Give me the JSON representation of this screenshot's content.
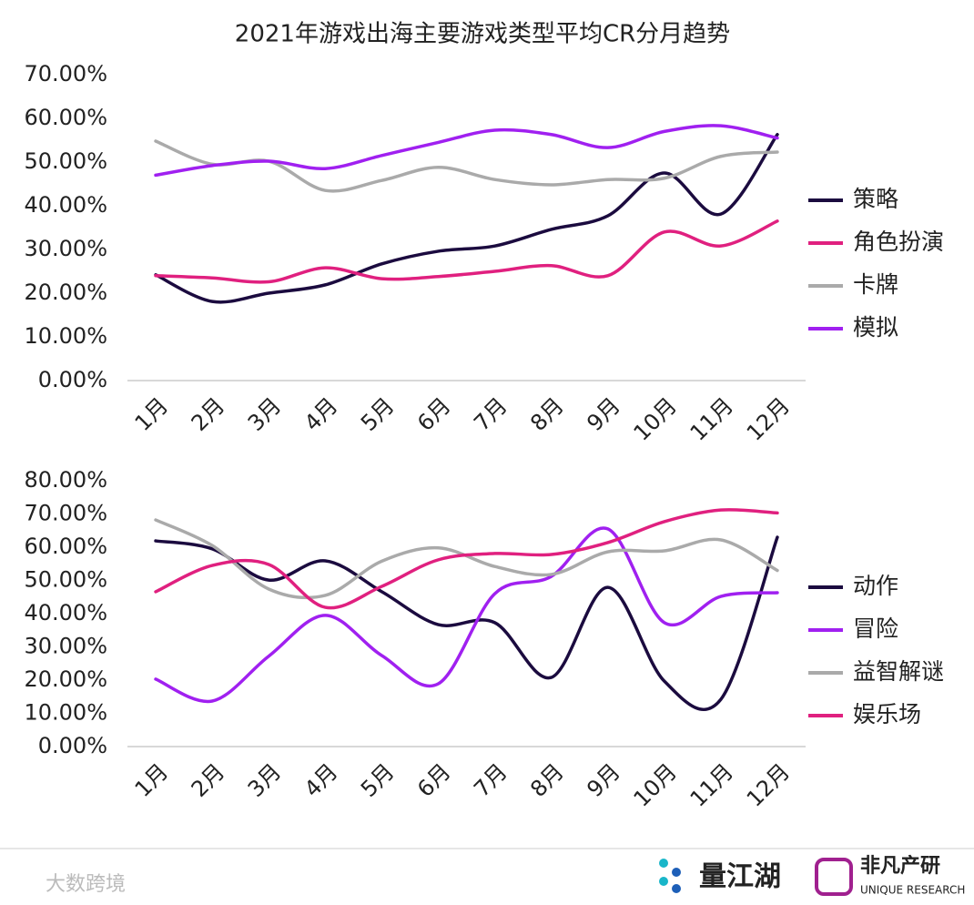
{
  "title": "2021年游戏出海主要游戏类型平均CR分月趋势",
  "footer": {
    "watermark": "大数跨境",
    "logo1": "量江湖",
    "logo2": "非凡产研",
    "logo2_sub": "UNIQUE RESEARCH"
  },
  "chart_data": [
    {
      "type": "line",
      "categories": [
        "1月",
        "2月",
        "3月",
        "4月",
        "5月",
        "6月",
        "7月",
        "8月",
        "9月",
        "10月",
        "11月",
        "12月"
      ],
      "series": [
        {
          "name": "策略",
          "color": "#1b0b3f",
          "values": [
            24.2,
            18.1,
            20,
            21.9,
            26.7,
            29.6,
            30.8,
            34.6,
            37.7,
            47.5,
            38.1,
            56.3
          ]
        },
        {
          "name": "角色扮演",
          "color": "#e0207f",
          "values": [
            24,
            23.5,
            22.6,
            25.8,
            23.3,
            23.8,
            25,
            26.3,
            24,
            34,
            30.8,
            36.5
          ]
        },
        {
          "name": "卡牌",
          "color": "#aaaaaa",
          "values": [
            54.8,
            49.5,
            50.2,
            43.5,
            45.8,
            48.8,
            46,
            44.8,
            46,
            46.3,
            51.3,
            52.3
          ]
        },
        {
          "name": "模拟",
          "color": "#a020f0",
          "values": [
            47,
            49.2,
            50.2,
            48.5,
            51.5,
            54.5,
            57.3,
            56.3,
            53.3,
            57,
            58.3,
            55.5
          ]
        }
      ],
      "ylim": [
        0,
        70
      ],
      "yticks": [
        {
          "value": 0,
          "label": "0.00%"
        },
        {
          "value": 10,
          "label": "10.00%"
        },
        {
          "value": 20,
          "label": "20.00%"
        },
        {
          "value": 30,
          "label": "30.00%"
        },
        {
          "value": 40,
          "label": "40.00%"
        },
        {
          "value": 50,
          "label": "50.00%"
        },
        {
          "value": 60,
          "label": "60.00%"
        },
        {
          "value": 70,
          "label": "70.00%"
        }
      ],
      "grid": false,
      "legend": "right"
    },
    {
      "type": "line",
      "categories": [
        "1月",
        "2月",
        "3月",
        "4月",
        "5月",
        "6月",
        "7月",
        "8月",
        "9月",
        "10月",
        "11月",
        "12月"
      ],
      "series": [
        {
          "name": "动作",
          "color": "#1b0b3f",
          "values": [
            61.9,
            59.5,
            50.1,
            55.9,
            46.6,
            36.7,
            37.3,
            20.8,
            47.9,
            19.7,
            14.2,
            63
          ]
        },
        {
          "name": "冒险",
          "color": "#a020f0",
          "values": [
            20.3,
            13.7,
            27.2,
            39.5,
            27.4,
            18.9,
            46,
            51.2,
            65.5,
            37.3,
            45.2,
            46.3
          ]
        },
        {
          "name": "益智解谜",
          "color": "#aaaaaa",
          "values": [
            68.2,
            60.5,
            47.4,
            45.5,
            55.8,
            59.8,
            54.2,
            51.8,
            58.6,
            58.9,
            62.2,
            53
          ]
        },
        {
          "name": "娱乐场",
          "color": "#e0207f",
          "values": [
            46.6,
            54.5,
            54.8,
            41.9,
            48.2,
            56.2,
            58.1,
            57.8,
            61.4,
            67.7,
            71.2,
            70.3
          ]
        }
      ],
      "ylim": [
        0,
        80
      ],
      "yticks": [
        {
          "value": 0,
          "label": "0.00%"
        },
        {
          "value": 10,
          "label": "10.00%"
        },
        {
          "value": 20,
          "label": "20.00%"
        },
        {
          "value": 30,
          "label": "30.00%"
        },
        {
          "value": 40,
          "label": "40.00%"
        },
        {
          "value": 50,
          "label": "50.00%"
        },
        {
          "value": 60,
          "label": "60.00%"
        },
        {
          "value": 70,
          "label": "70.00%"
        },
        {
          "value": 80,
          "label": "80.00%"
        }
      ],
      "grid": false,
      "legend": "right"
    }
  ]
}
